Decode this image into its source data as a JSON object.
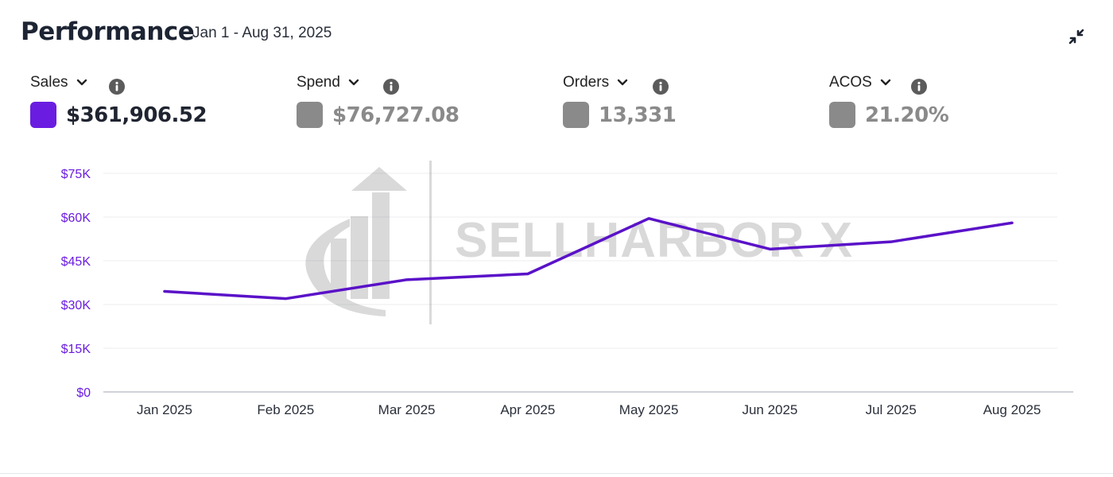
{
  "header": {
    "title": "Performance",
    "date_range": "Jan 1 - Aug 31, 2025"
  },
  "metrics": [
    {
      "label": "Sales",
      "value": "$361,906.52",
      "color": "#6a1de0",
      "active": true
    },
    {
      "label": "Spend",
      "value": "$76,727.08",
      "color": "#8a8a8a",
      "active": false
    },
    {
      "label": "Orders",
      "value": "13,331",
      "color": "#8a8a8a",
      "active": false
    },
    {
      "label": "ACOS",
      "value": "21.20%",
      "color": "#8a8a8a",
      "active": false
    }
  ],
  "icons": {
    "collapse": "collapse-arrows-icon",
    "dropdown": "chevron-down-icon",
    "info": "info-icon"
  },
  "watermark": {
    "text": "SELLHARBOR X"
  },
  "chart_data": {
    "type": "line",
    "categories": [
      "Jan 2025",
      "Feb 2025",
      "Mar 2025",
      "Apr 2025",
      "May 2025",
      "Jun 2025",
      "Jul 2025",
      "Aug 2025"
    ],
    "series": [
      {
        "name": "Sales",
        "values": [
          34500,
          32000,
          38500,
          40500,
          59500,
          49000,
          51500,
          58000
        ],
        "color": "#5a12c8"
      }
    ],
    "y_ticks": [
      "$0",
      "$15K",
      "$30K",
      "$45K",
      "$60K",
      "$75K"
    ],
    "y_tick_values": [
      0,
      15000,
      30000,
      45000,
      60000,
      75000
    ],
    "ylim": [
      0,
      75000
    ],
    "grid": true,
    "tick_color": "#6a1de0"
  }
}
